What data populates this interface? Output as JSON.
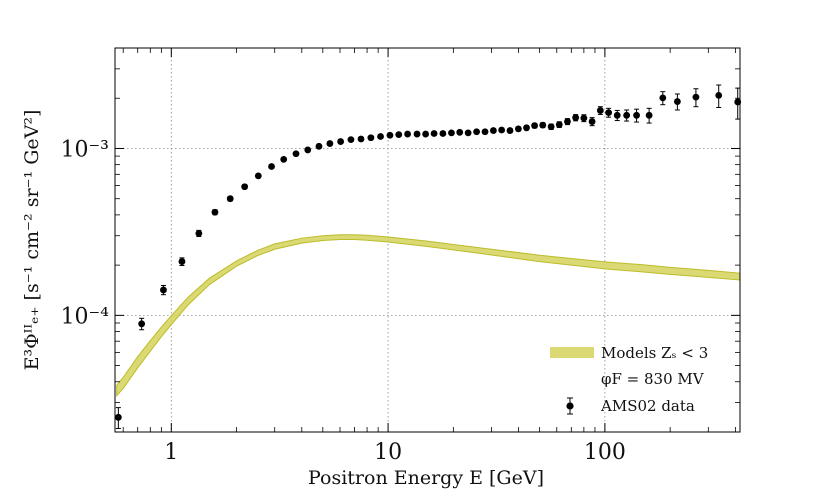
{
  "chart_data": {
    "type": "scatter",
    "x_scale": "log",
    "y_scale": "log",
    "xlim": [
      0.55,
      420
    ],
    "ylim": [
      2e-05,
      0.004
    ],
    "xlabel": "Positron Energy E [GeV]",
    "ylabel": "E³Φᴵᴵₑ₊ [s⁻¹ cm⁻² sr⁻¹ GeV²]",
    "x_ticks": [
      {
        "value": 1,
        "label": "1"
      },
      {
        "value": 10,
        "label": "10"
      },
      {
        "value": 100,
        "label": "100"
      }
    ],
    "y_ticks": [
      {
        "value": 0.0001,
        "label": "10⁻⁴"
      },
      {
        "value": 0.001,
        "label": "10⁻³"
      }
    ],
    "grid": true,
    "legend_position": "bottom-right",
    "legend": [
      {
        "label": "Models Zₛ < 3",
        "sublabel": "φF = 830 MV",
        "color": "#d3d25a",
        "kind": "band"
      },
      {
        "label": "AMS02 data",
        "color": "#000000",
        "kind": "errorbar"
      }
    ],
    "series": [
      {
        "name": "Models Zₛ < 3",
        "kind": "band",
        "color": "#d3d25a",
        "edge_color": "#bcbc2a",
        "x": [
          0.56,
          0.6,
          0.7,
          0.8,
          0.9,
          1.0,
          1.2,
          1.5,
          2.0,
          2.5,
          3.0,
          4.0,
          5.0,
          6.0,
          7.0,
          8.0,
          10,
          15,
          20,
          30,
          50,
          70,
          100,
          150,
          200,
          300,
          420
        ],
        "lower": [
          3.3e-05,
          3.65e-05,
          4.85e-05,
          6.1e-05,
          7.45e-05,
          8.8e-05,
          0.000116,
          0.000153,
          0.000197,
          0.000228,
          0.000249,
          0.000271,
          0.000281,
          0.000285,
          0.000285,
          0.000282,
          0.000275,
          0.000259,
          0.000247,
          0.00023,
          0.00021,
          0.0002,
          0.00019,
          0.000182,
          0.000176,
          0.000169,
          0.000163
        ],
        "upper": [
          3.8e-05,
          4.25e-05,
          5.65e-05,
          7.05e-05,
          8.5e-05,
          9.95e-05,
          0.000129,
          0.000167,
          0.000212,
          0.000245,
          0.000268,
          0.00029,
          0.0003,
          0.000304,
          0.000304,
          0.000302,
          0.000295,
          0.000279,
          0.000266,
          0.000249,
          0.000229,
          0.000219,
          0.000209,
          0.000201,
          0.000194,
          0.000186,
          0.000179
        ]
      },
      {
        "name": "AMS02 data",
        "kind": "errorbar",
        "color": "#000000",
        "x": [
          0.57,
          0.73,
          0.92,
          1.12,
          1.34,
          1.59,
          1.87,
          2.18,
          2.52,
          2.9,
          3.3,
          3.76,
          4.26,
          4.8,
          5.39,
          6.04,
          6.74,
          7.5,
          8.33,
          9.23,
          10.2,
          11.2,
          12.3,
          13.6,
          14.9,
          16.3,
          17.9,
          19.6,
          21.4,
          23.4,
          25.6,
          28.0,
          30.6,
          33.4,
          36.5,
          39.9,
          43.5,
          47.4,
          51.7,
          56.5,
          61.6,
          67.2,
          73.3,
          80.0,
          87.3,
          95.3,
          104,
          114,
          126,
          140,
          160,
          185,
          216,
          263,
          335,
          410
        ],
        "y": [
          2.45e-05,
          8.9e-05,
          0.000142,
          0.00021,
          0.00031,
          0.000415,
          0.0005,
          0.00059,
          0.000685,
          0.00078,
          0.00086,
          0.00093,
          0.00098,
          0.00103,
          0.00107,
          0.0011,
          0.00113,
          0.00114,
          0.00116,
          0.00118,
          0.0012,
          0.00121,
          0.00122,
          0.00122,
          0.00122,
          0.00123,
          0.00123,
          0.00124,
          0.00125,
          0.00124,
          0.00126,
          0.00126,
          0.00128,
          0.00129,
          0.00128,
          0.00131,
          0.00133,
          0.00137,
          0.00138,
          0.00135,
          0.00139,
          0.00145,
          0.00153,
          0.00152,
          0.00145,
          0.00169,
          0.00164,
          0.00158,
          0.00158,
          0.00158,
          0.00158,
          0.00201,
          0.00191,
          0.00203,
          0.00208,
          0.0019
        ],
        "yerr": [
          3.5e-06,
          7e-06,
          9e-06,
          1.1e-05,
          1.3e-05,
          1.4e-05,
          1.5e-05,
          1.6e-05,
          1.7e-05,
          1.8e-05,
          1.8e-05,
          1.9e-05,
          2e-05,
          2e-05,
          2.1e-05,
          2.1e-05,
          2.2e-05,
          2.2e-05,
          2.3e-05,
          2.3e-05,
          2.4e-05,
          2.4e-05,
          2.5e-05,
          2.5e-05,
          2.6e-05,
          2.6e-05,
          2.7e-05,
          2.8e-05,
          2.9e-05,
          3e-05,
          3.1e-05,
          3.2e-05,
          3.3e-05,
          3.5e-05,
          3.6e-05,
          3.8e-05,
          4e-05,
          4.3e-05,
          4.6e-05,
          5e-05,
          5.5e-05,
          6e-05,
          6.6e-05,
          7.2e-05,
          8e-05,
          9e-05,
          0.0001,
          0.00011,
          0.00012,
          0.00014,
          0.00016,
          0.00018,
          0.00021,
          0.00025,
          0.00032,
          0.0004
        ]
      }
    ]
  }
}
